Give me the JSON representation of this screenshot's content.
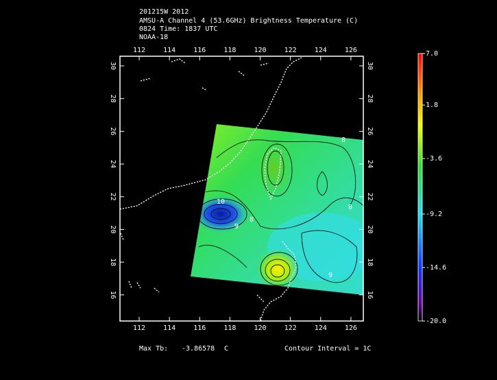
{
  "header": {
    "lines": [
      "201215W 2012",
      "AMSU-A Channel 4 (53.6GHz) Brightness Temperature (C)",
      "0824 Time: 1837 UTC",
      "NOAA-18"
    ]
  },
  "map": {
    "lon_range": [
      110.73,
      126.82
    ],
    "lat_range": [
      14.4,
      30.59
    ],
    "lon_ticks": [
      112,
      114,
      116,
      118,
      120,
      122,
      124,
      126
    ],
    "lat_ticks": [
      16,
      18,
      20,
      22,
      24,
      26,
      28,
      30
    ],
    "contour_labels": [
      "8",
      "10",
      "9",
      "8",
      "9",
      "8"
    ]
  },
  "colorbar": {
    "range": [
      -20,
      7
    ],
    "ticks": [
      {
        "value": 7,
        "label": "7.0"
      },
      {
        "value": 1.8,
        "label": "1.8"
      },
      {
        "value": -3.6,
        "label": "-3.6"
      },
      {
        "value": -9.2,
        "label": "-9.2"
      },
      {
        "value": -14.6,
        "label": "-14.6"
      },
      {
        "value": -20,
        "label": "-20.0"
      }
    ]
  },
  "footer": {
    "max_label": "Max Tb:",
    "max_value": -3.86578,
    "max_unit": "C",
    "contour": "Contour Interval = 1C"
  }
}
